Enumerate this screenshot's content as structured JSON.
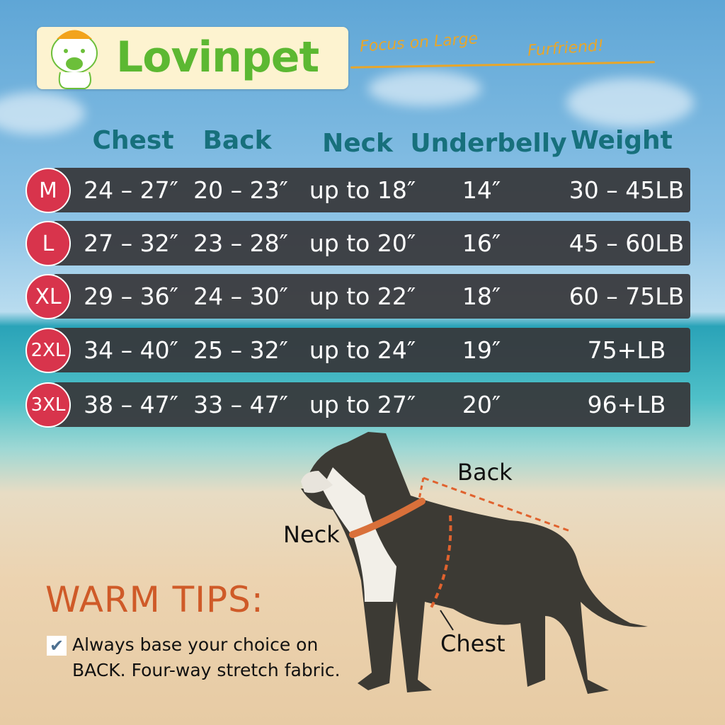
{
  "brand": {
    "name": "Lovinpet",
    "tagline_1": "Focus on Large",
    "tagline_2": "Furfriend!"
  },
  "table": {
    "headers": [
      "Chest",
      "Back",
      "Neck",
      "Underbelly",
      "Weight"
    ],
    "rows": [
      {
        "size": "M",
        "chest": "24 – 27″",
        "back": "20 – 23″",
        "neck": "up to 18″",
        "underbelly": "14″",
        "weight": "30 – 45LB"
      },
      {
        "size": "L",
        "chest": "27 – 32″",
        "back": "23 – 28″",
        "neck": "up to 20″",
        "underbelly": "16″",
        "weight": "45 – 60LB"
      },
      {
        "size": "XL",
        "chest": "29 – 36″",
        "back": "24 – 30″",
        "neck": "up to 22″",
        "underbelly": "18″",
        "weight": "60 – 75LB"
      },
      {
        "size": "2XL",
        "chest": "34 – 40″",
        "back": "25 – 32″",
        "neck": "up to 24″",
        "underbelly": "19″",
        "weight": "75+LB"
      },
      {
        "size": "3XL",
        "chest": "38 – 47″",
        "back": "33 – 47″",
        "neck": "up to 27″",
        "underbelly": "20″",
        "weight": "96+LB"
      }
    ]
  },
  "diagram": {
    "back_label": "Back",
    "neck_label": "Neck",
    "chest_label": "Chest"
  },
  "tips": {
    "title": "WARM TIPS:",
    "line_1": "Always base your choice on",
    "line_2_bold": "BACK.",
    "line_2_rest": "Four-way stretch fabric."
  },
  "colors": {
    "size_badge": "#d8344c",
    "header": "#17707c",
    "tips_title": "#cf5a28",
    "brand": "#5cb832",
    "measure_line": "#e0622e"
  }
}
